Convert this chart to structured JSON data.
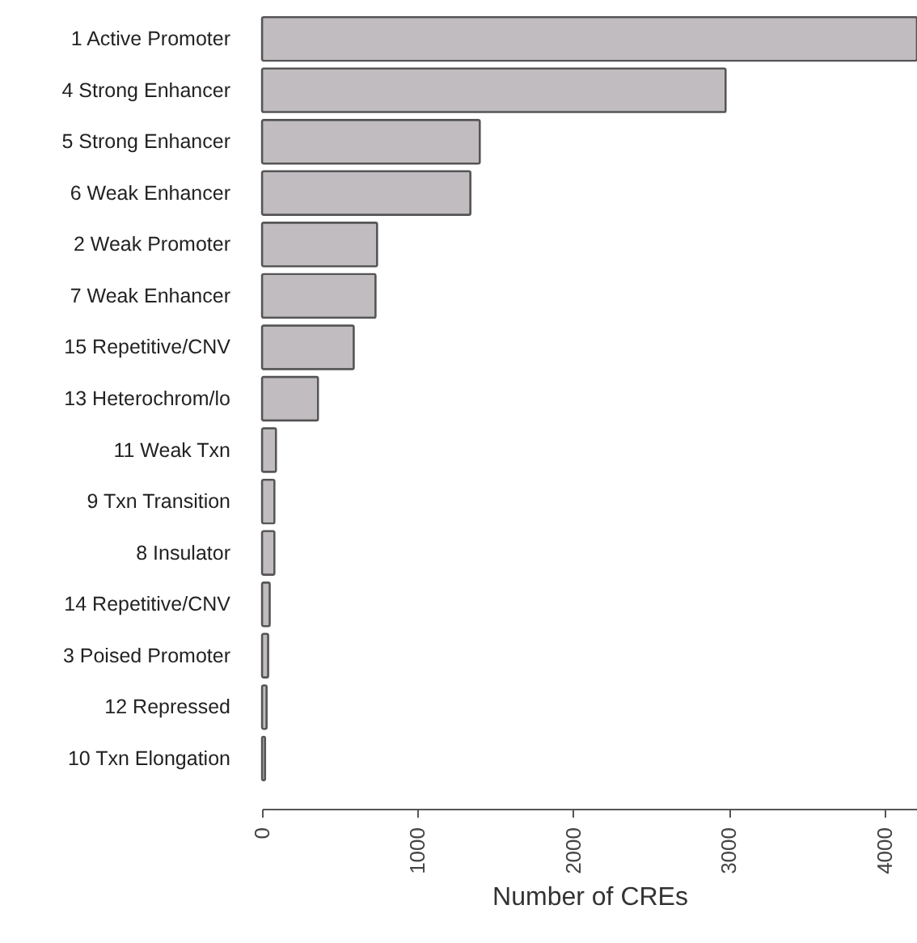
{
  "chart_data": {
    "type": "bar",
    "orientation": "horizontal",
    "xlabel": "Number of CREs",
    "categories": [
      "1 Active Promoter",
      "4 Strong Enhancer",
      "5 Strong Enhancer",
      "6 Weak Enhancer",
      "2 Weak Promoter",
      "7 Weak Enhancer",
      "15 Repetitive/CNV",
      "13 Heterochrom/lo",
      "11 Weak Txn",
      "9 Txn Transition",
      "8 Insulator",
      "14 Repetitive/CNV",
      "3 Poised Promoter",
      "12 Repressed",
      "10 Txn Elongation"
    ],
    "values": [
      4210,
      2980,
      1400,
      1340,
      740,
      730,
      590,
      360,
      90,
      80,
      80,
      50,
      40,
      30,
      20
    ],
    "color": "#c0bcc0",
    "xlim": [
      0,
      4210
    ],
    "xticks": [
      0,
      1000,
      2000,
      3000,
      4000
    ]
  }
}
